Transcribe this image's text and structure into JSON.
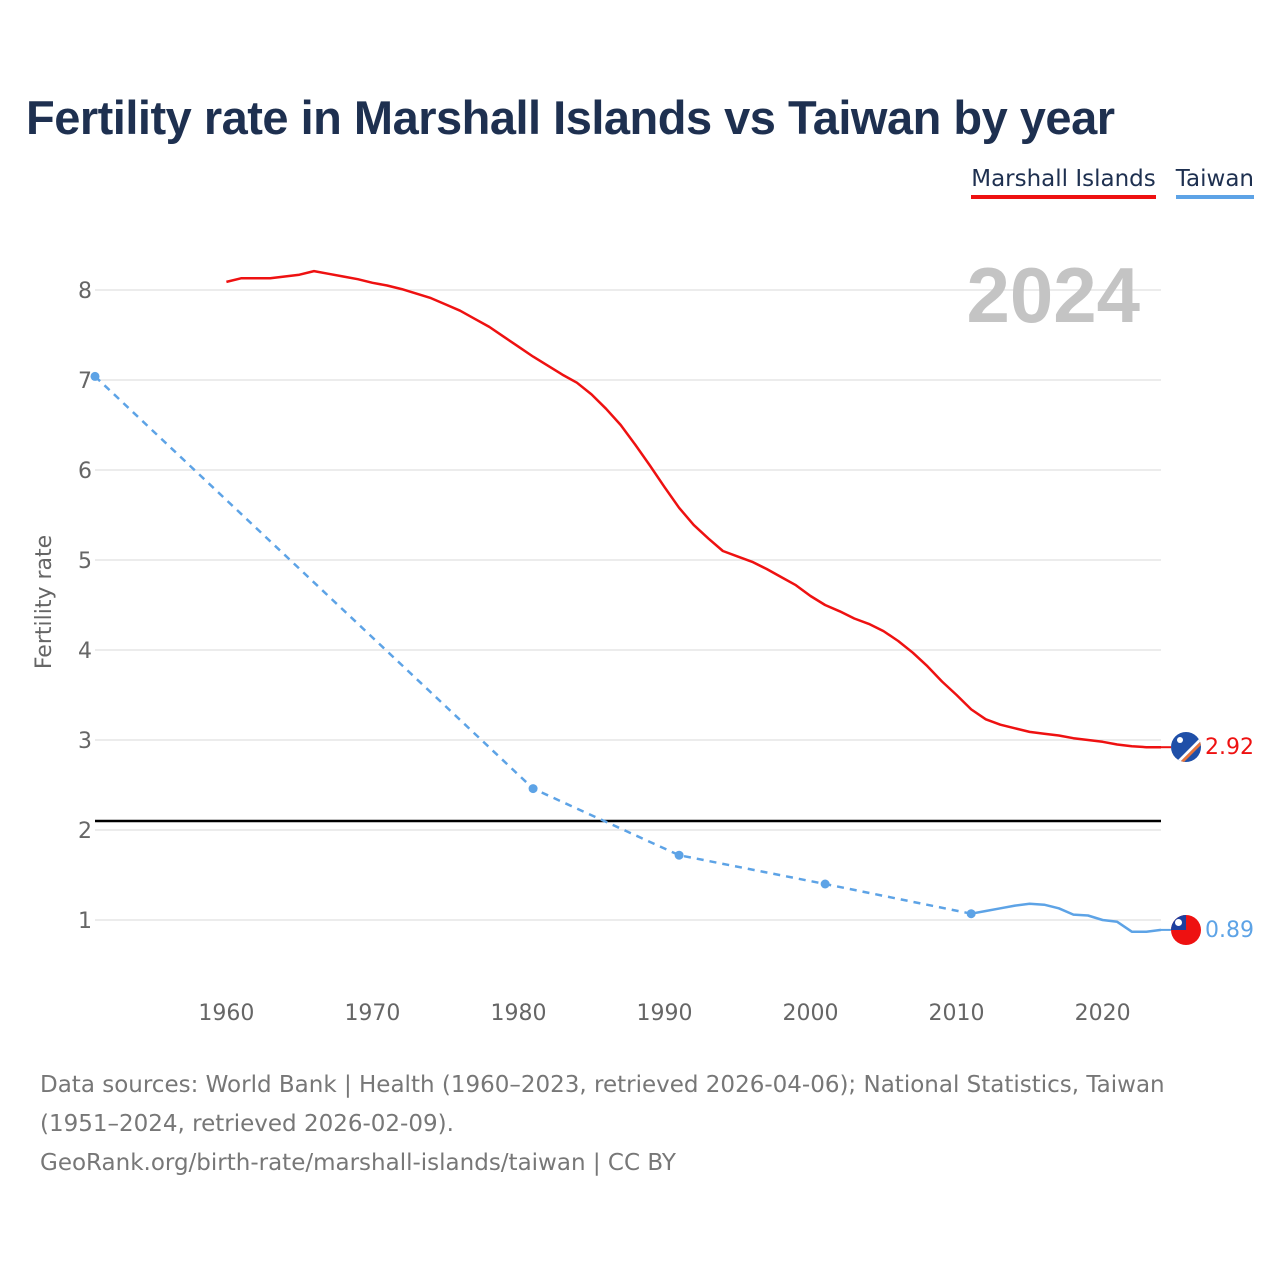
{
  "title": "Fertility rate in Marshall Islands vs Taiwan by year",
  "legend": [
    {
      "label": "Marshall Islands",
      "color": "#ee1111"
    },
    {
      "label": "Taiwan",
      "color": "#5da3e6"
    }
  ],
  "year_label": "2024",
  "footer": {
    "sources": "Data sources: World Bank | Health (1960–2023, retrieved 2026-04-06); National Statistics, Taiwan (1951–2024, retrieved 2026-02-09).",
    "link": "GeoRank.org/birth-rate/marshall-islands/taiwan | CC BY"
  },
  "chart_data": {
    "type": "line",
    "title": "Fertility rate in Marshall Islands vs Taiwan by year",
    "xlabel": "",
    "ylabel": "Fertility rate",
    "xlim": [
      1951,
      2024
    ],
    "ylim": [
      0.5,
      8.5
    ],
    "x_ticks": [
      "1960",
      "1970",
      "1980",
      "1990",
      "2000",
      "2010",
      "2020"
    ],
    "y_ticks": [
      "1",
      "2",
      "3",
      "4",
      "5",
      "6",
      "7",
      "8"
    ],
    "reference_line": {
      "y": 2.1,
      "color": "#000000"
    },
    "series": [
      {
        "name": "Marshall Islands",
        "color": "#ee1111",
        "end_label": "2.92",
        "x": [
          1960,
          1961,
          1962,
          1963,
          1964,
          1965,
          1966,
          1967,
          1968,
          1969,
          1970,
          1971,
          1972,
          1973,
          1974,
          1975,
          1976,
          1977,
          1978,
          1979,
          1980,
          1981,
          1982,
          1983,
          1984,
          1985,
          1986,
          1987,
          1988,
          1989,
          1990,
          1991,
          1992,
          1993,
          1994,
          1995,
          1996,
          1997,
          1998,
          1999,
          2000,
          2001,
          2002,
          2003,
          2004,
          2005,
          2006,
          2007,
          2008,
          2009,
          2010,
          2011,
          2012,
          2013,
          2014,
          2015,
          2016,
          2017,
          2018,
          2019,
          2020,
          2021,
          2022,
          2023,
          2024
        ],
        "values": [
          8.09,
          8.13,
          8.13,
          8.13,
          8.15,
          8.17,
          8.21,
          8.18,
          8.15,
          8.12,
          8.08,
          8.05,
          8.01,
          7.96,
          7.91,
          7.84,
          7.77,
          7.68,
          7.59,
          7.48,
          7.37,
          7.26,
          7.16,
          7.06,
          6.97,
          6.84,
          6.68,
          6.5,
          6.28,
          6.05,
          5.81,
          5.58,
          5.39,
          5.24,
          5.1,
          5.04,
          4.98,
          4.9,
          4.81,
          4.72,
          4.6,
          4.5,
          4.43,
          4.35,
          4.29,
          4.21,
          4.1,
          3.97,
          3.82,
          3.65,
          3.5,
          3.34,
          3.23,
          3.17,
          3.13,
          3.09,
          3.07,
          3.05,
          3.02,
          3.0,
          2.98,
          2.95,
          2.93,
          2.92,
          2.92
        ]
      },
      {
        "name": "Taiwan",
        "color": "#5da3e6",
        "end_label": "0.89",
        "dashed_until": 2011,
        "x": [
          1951,
          1981,
          1991,
          2001,
          2011,
          2012,
          2013,
          2014,
          2015,
          2016,
          2017,
          2018,
          2019,
          2020,
          2021,
          2022,
          2023,
          2024
        ],
        "values": [
          7.04,
          2.46,
          1.72,
          1.4,
          1.07,
          1.1,
          1.13,
          1.16,
          1.18,
          1.17,
          1.13,
          1.06,
          1.05,
          1.0,
          0.98,
          0.87,
          0.87,
          0.89
        ],
        "markers_at": [
          1951,
          1981,
          1991,
          2001,
          2011
        ]
      }
    ]
  }
}
